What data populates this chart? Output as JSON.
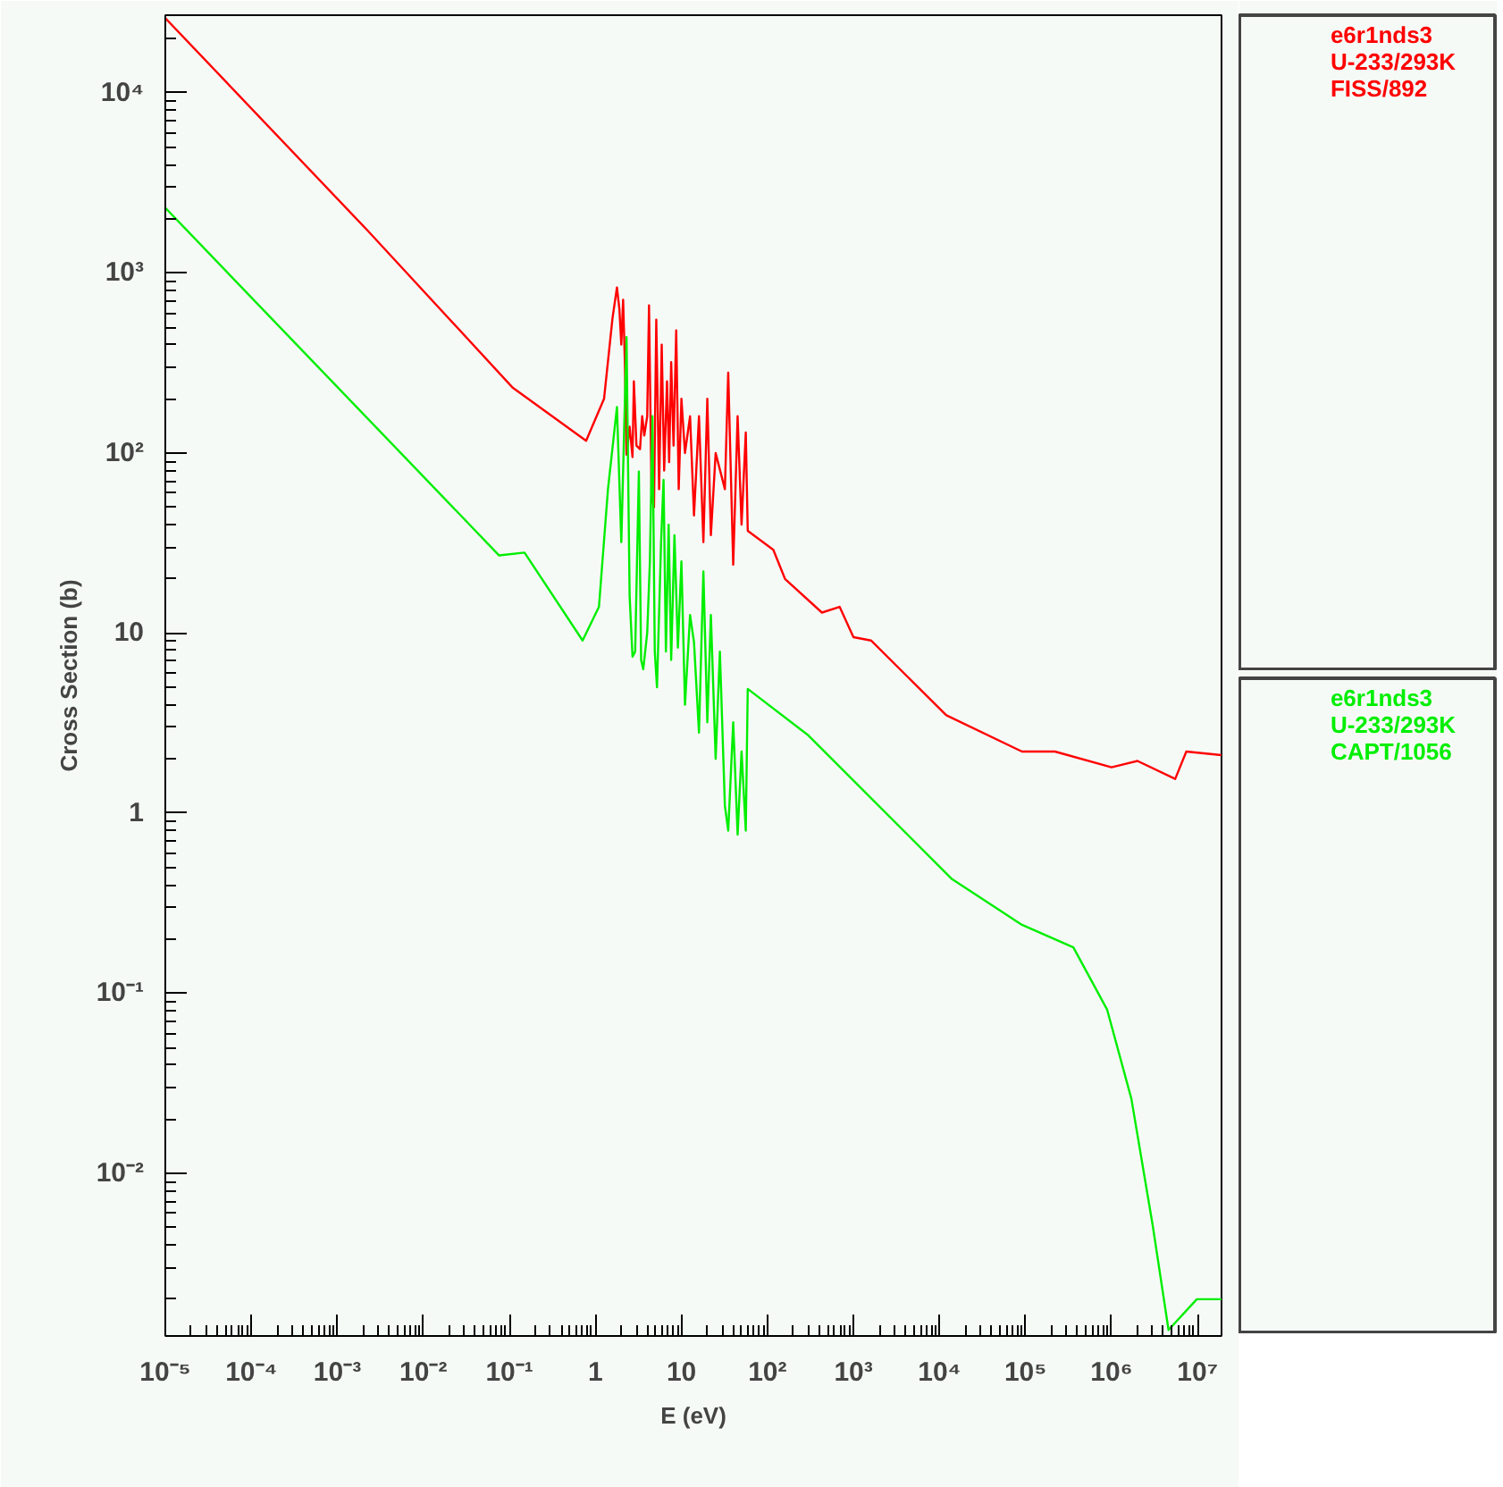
{
  "chart_data": {
    "type": "line",
    "xlabel": "E (eV)",
    "ylabel": "Cross Section (b)",
    "log": "xy",
    "grid": false,
    "legend": "right",
    "line_style": "solid",
    "xlim": [
      1e-05,
      19000000.0
    ],
    "ylim": [
      0.00125,
      27000
    ],
    "xticks": [
      {
        "value": 1e-05,
        "label": "10⁻⁵"
      },
      {
        "value": 0.0001,
        "label": "10⁻⁴"
      },
      {
        "value": 0.001,
        "label": "10⁻³"
      },
      {
        "value": 0.01,
        "label": "10⁻²"
      },
      {
        "value": 0.1,
        "label": "10⁻¹"
      },
      {
        "value": 1,
        "label": "1"
      },
      {
        "value": 10,
        "label": "10"
      },
      {
        "value": 100,
        "label": "10²"
      },
      {
        "value": 1000,
        "label": "10³"
      },
      {
        "value": 10000,
        "label": "10⁴"
      },
      {
        "value": 100000,
        "label": "10⁵"
      },
      {
        "value": 1000000,
        "label": "10⁶"
      },
      {
        "value": 10000000,
        "label": "10⁷"
      }
    ],
    "yticks": [
      {
        "value": 10000,
        "label": "10⁴"
      },
      {
        "value": 1000,
        "label": "10³"
      },
      {
        "value": 100,
        "label": "10²"
      },
      {
        "value": 10,
        "label": "10"
      },
      {
        "value": 1,
        "label": "1"
      },
      {
        "value": 0.1,
        "label": "10⁻¹"
      },
      {
        "value": 0.01,
        "label": "10⁻²"
      }
    ],
    "series": [
      {
        "name": "e6r1nds3\nU-233/293K\nFISS/892",
        "color": "#ff0000",
        "x": [
          1e-05,
          0.0023,
          0.11,
          0.78,
          1.26,
          1.58,
          1.78,
          1.9,
          2.0,
          2.1,
          2.2,
          2.3,
          2.5,
          2.7,
          2.8,
          3.0,
          3.3,
          3.5,
          3.7,
          4.0,
          4.2,
          4.5,
          4.8,
          5.1,
          5.5,
          5.9,
          6.3,
          6.8,
          7.2,
          7.6,
          8.1,
          8.7,
          9.3,
          10,
          11,
          12.6,
          14,
          16,
          18,
          20,
          22,
          25,
          32,
          35,
          40,
          45,
          50,
          56,
          59,
          117,
          160,
          430,
          690,
          1000,
          1600,
          12000,
          91000,
          220000,
          1000000,
          2000000,
          5500000,
          7400000,
          19000000
        ],
        "values": [
          26000,
          1700,
          230,
          117,
          200,
          560,
          830,
          630,
          400,
          710,
          320,
          98,
          140,
          95,
          250,
          110,
          105,
          160,
          125,
          160,
          660,
          56,
          50,
          550,
          63,
          400,
          80,
          250,
          89,
          320,
          110,
          480,
          63,
          200,
          100,
          160,
          45,
          160,
          32,
          200,
          35,
          100,
          63,
          280,
          24,
          160,
          40,
          130,
          37,
          29,
          20,
          13,
          14,
          9.5,
          9.1,
          3.5,
          2.2,
          2.2,
          1.8,
          1.95,
          1.55,
          2.2,
          2.1
        ]
      },
      {
        "name": "e6r1nds3\nU-233/293K\nCAPT/1056",
        "color": "#00ee00",
        "x": [
          1e-05,
          0.076,
          0.15,
          0.71,
          1.1,
          1.4,
          1.78,
          2.0,
          2.3,
          2.5,
          2.7,
          2.9,
          3.2,
          3.4,
          3.6,
          4.0,
          4.3,
          4.6,
          4.9,
          5.2,
          5.8,
          6.2,
          6.6,
          7.1,
          7.6,
          8.3,
          9.1,
          10,
          11,
          12.6,
          14,
          16,
          18,
          20,
          22,
          25,
          28,
          32,
          35,
          40,
          45,
          50,
          56,
          59,
          300,
          14000,
          91000,
          360000,
          890000,
          1700000,
          3000000,
          4600000,
          9800000,
          19000000
        ],
        "values": [
          2300,
          27,
          28,
          9.1,
          14,
          63,
          180,
          32,
          440,
          16,
          7.4,
          7.9,
          79,
          7.1,
          6.3,
          10,
          25,
          160,
          7.9,
          5.0,
          32,
          71,
          7.9,
          40,
          7.1,
          35,
          8.3,
          25,
          4.0,
          12.6,
          8.9,
          2.8,
          22,
          3.2,
          12.6,
          2.0,
          7.9,
          1.1,
          0.8,
          3.2,
          0.76,
          2.2,
          0.8,
          4.9,
          2.7,
          0.43,
          0.24,
          0.18,
          0.081,
          0.026,
          0.0052,
          0.00135,
          0.002,
          0.002
        ]
      }
    ]
  }
}
